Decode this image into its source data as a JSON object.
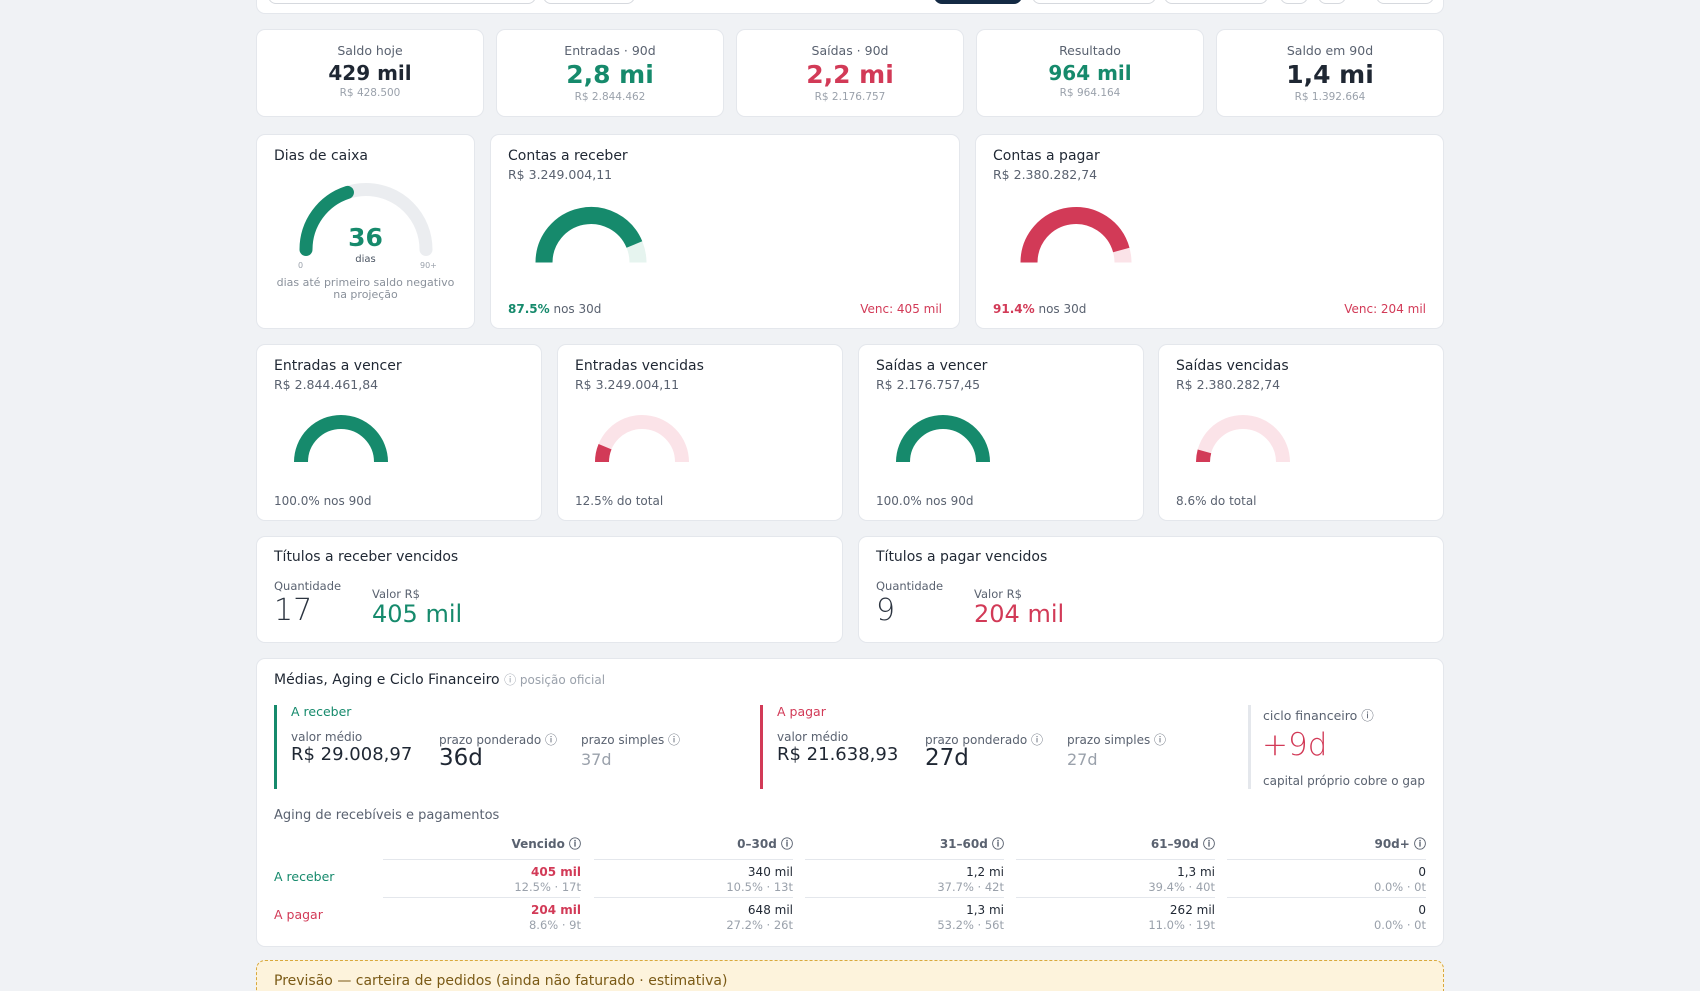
{
  "kpis": [
    {
      "label": "Saldo hoje",
      "value": "429 mil",
      "sub": "R$ 428.500",
      "tone": "dark"
    },
    {
      "label": "Entradas · 90d",
      "value": "2,8 mi",
      "sub": "R$ 2.844.462",
      "tone": "green"
    },
    {
      "label": "Saídas · 90d",
      "value": "2,2 mi",
      "sub": "R$ 2.176.757",
      "tone": "red"
    },
    {
      "label": "Resultado",
      "value": "964 mil",
      "sub": "R$ 964.164",
      "tone": "green"
    },
    {
      "label": "Saldo em 90d",
      "value": "1,4 mi",
      "sub": "R$ 1.392.664",
      "tone": "dark"
    }
  ],
  "dias_caixa": {
    "title": "Dias de caixa",
    "value": "36",
    "unit": "dias",
    "min_label": "0",
    "max_label": "90+",
    "fraction": 0.4,
    "caption_1": "dias até primeiro saldo negativo",
    "caption_2": "na projeção"
  },
  "contas_receber": {
    "title": "Contas a receber",
    "amount": "R$ 3.249.004,11",
    "percent": "87.5%",
    "percent_suffix": "nos 30d",
    "fraction": 0.875,
    "due": "Venc: 405 mil"
  },
  "contas_pagar": {
    "title": "Contas a pagar",
    "amount": "R$ 2.380.282,74",
    "percent": "91.4%",
    "percent_suffix": "nos 30d",
    "fraction": 0.914,
    "due": "Venc: 204 mil"
  },
  "small_gauges": [
    {
      "title": "Entradas a vencer",
      "amount": "R$ 2.844.461,84",
      "foot": "100.0% nos 90d",
      "fraction": 1.0,
      "tone": "green"
    },
    {
      "title": "Entradas vencidas",
      "amount": "R$ 3.249.004,11",
      "foot": "12.5% do total",
      "fraction": 0.125,
      "tone": "red"
    },
    {
      "title": "Saídas a vencer",
      "amount": "R$ 2.176.757,45",
      "foot": "100.0% nos 90d",
      "fraction": 1.0,
      "tone": "green"
    },
    {
      "title": "Saídas vencidas",
      "amount": "R$ 2.380.282,74",
      "foot": "8.6% do total",
      "fraction": 0.086,
      "tone": "red"
    }
  ],
  "titulos_receber": {
    "title": "Títulos a receber vencidos",
    "qty_label": "Quantidade",
    "qty": "17",
    "val_label": "Valor R$",
    "value": "405 mil"
  },
  "titulos_pagar": {
    "title": "Títulos a pagar vencidos",
    "qty_label": "Quantidade",
    "qty": "9",
    "val_label": "Valor R$",
    "value": "204 mil"
  },
  "medias": {
    "title": "Médias, Aging e Ciclo Financeiro",
    "note": "ⓘ posição oficial",
    "receber": {
      "header": "A receber",
      "avg_label": "valor médio",
      "avg": "R$ 29.008,97",
      "pond_label": "prazo ponderado ⓘ",
      "pond": "36d",
      "simp_label": "prazo simples ⓘ",
      "simp": "37d"
    },
    "pagar": {
      "header": "A pagar",
      "avg_label": "valor médio",
      "avg": "R$ 21.638,93",
      "pond_label": "prazo ponderado ⓘ",
      "pond": "27d",
      "simp_label": "prazo simples ⓘ",
      "simp": "27d"
    },
    "ciclo": {
      "label": "ciclo financeiro ⓘ",
      "value": "+9d",
      "caption": "capital próprio cobre o gap"
    }
  },
  "aging": {
    "title": "Aging de recebíveis e pagamentos",
    "columns": [
      "Vencido ⓘ",
      "0–30d ⓘ",
      "31–60d ⓘ",
      "61–90d ⓘ",
      "90d+ ⓘ"
    ],
    "rows": [
      {
        "label": "A receber",
        "cells": [
          {
            "v": "405 mil",
            "s": "12.5% · 17t"
          },
          {
            "v": "340 mil",
            "s": "10.5% · 13t"
          },
          {
            "v": "1,2 mi",
            "s": "37.7% · 42t"
          },
          {
            "v": "1,3 mi",
            "s": "39.4% · 40t"
          },
          {
            "v": "0",
            "s": "0.0% · 0t"
          }
        ]
      },
      {
        "label": "A pagar",
        "cells": [
          {
            "v": "204 mil",
            "s": "8.6% · 9t"
          },
          {
            "v": "648 mil",
            "s": "27.2% · 26t"
          },
          {
            "v": "1,3 mi",
            "s": "53.2% · 56t"
          },
          {
            "v": "262 mil",
            "s": "11.0% · 19t"
          },
          {
            "v": "0",
            "s": "0.0% · 0t"
          }
        ]
      }
    ]
  },
  "forecast": {
    "label": "Previsão — carteira de pedidos (ainda não faturado · estimativa)"
  },
  "colors": {
    "green": "#168a6c",
    "red": "#d23a57",
    "track": "#ebedf0",
    "green_track": "#e6f4ef",
    "red_track": "#fbe3e8"
  }
}
